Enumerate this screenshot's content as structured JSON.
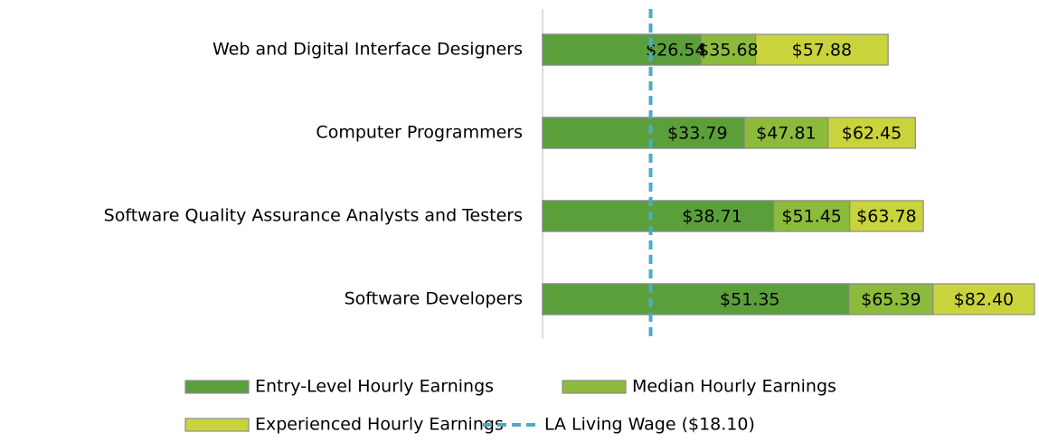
{
  "chart_data": {
    "type": "bar",
    "categories": [
      "Web and Digital Interface Designers",
      "Computer Programmers",
      "Software Quality Assurance Analysts and Testers",
      "Software Developers"
    ],
    "series": [
      {
        "name": "Entry-Level Hourly Earnings",
        "color": "#5b9f3b",
        "values": [
          26.54,
          33.79,
          38.71,
          51.35
        ],
        "value_labels": [
          "$26.54",
          "$33.79",
          "$38.71",
          "$51.35"
        ]
      },
      {
        "name": "Median Hourly Earnings",
        "color": "#8cbb3c",
        "values": [
          35.68,
          47.81,
          51.45,
          65.39
        ],
        "value_labels": [
          "$35.68",
          "$47.81",
          "$51.45",
          "$65.39"
        ]
      },
      {
        "name": "Experienced Hourly Earnings",
        "color": "#c9d43c",
        "values": [
          57.88,
          62.45,
          63.78,
          82.4
        ],
        "value_labels": [
          "$57.88",
          "$62.45",
          "$63.78",
          "$82.40"
        ]
      }
    ],
    "reference_line": {
      "name": "LA Living Wage ($18.10)",
      "value": 18.1,
      "color": "#4bacc6"
    },
    "xlim": [
      0,
      83
    ]
  }
}
